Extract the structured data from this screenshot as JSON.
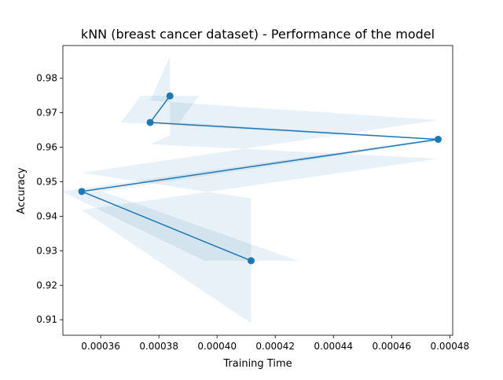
{
  "chart_data": {
    "type": "line",
    "title": "kNN (breast cancer dataset) - Performance of the model",
    "xlabel": "Training Time",
    "ylabel": "Accuracy",
    "xlim": [
      0.000347,
      0.000481
    ],
    "ylim": [
      0.9055,
      0.9895
    ],
    "xticks": [
      0.00036,
      0.00038,
      0.0004,
      0.00042,
      0.00044,
      0.00046,
      0.00048
    ],
    "xtick_labels": [
      "0.00036",
      "0.00038",
      "0.00040",
      "0.00042",
      "0.00044",
      "0.00046",
      "0.00048"
    ],
    "yticks": [
      0.91,
      0.92,
      0.93,
      0.94,
      0.95,
      0.96,
      0.97,
      0.98
    ],
    "ytick_labels": [
      "0.91",
      "0.92",
      "0.93",
      "0.94",
      "0.95",
      "0.96",
      "0.97",
      "0.98"
    ],
    "grid": false,
    "series": [
      {
        "color": "#1f77b4",
        "marker": "circle",
        "x": [
          0.0003838,
          0.000377,
          0.000476,
          0.0003535,
          0.0004117
        ],
        "y": [
          0.9749,
          0.9672,
          0.9623,
          0.9472,
          0.9271
        ]
      }
    ],
    "error_band": {
      "color": "#1f77b4",
      "opacity": 0.1,
      "xerr": [
        1e-05,
        1e-05,
        3.2e-06,
        7e-06,
        1.6e-05
      ],
      "yerr": [
        0.0115,
        0.0063,
        0.0056,
        0.0054,
        0.0181
      ]
    }
  }
}
